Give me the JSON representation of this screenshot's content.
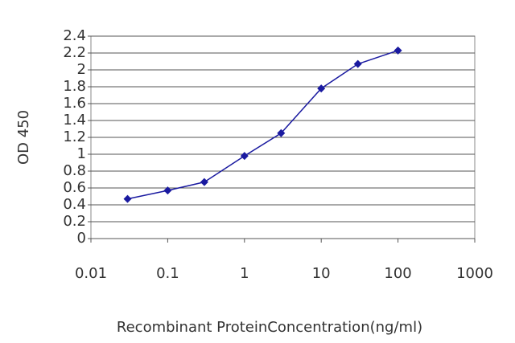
{
  "chart_data": {
    "type": "line",
    "xlabel": "Recombinant ProteinConcentration(ng/ml)",
    "ylabel": "OD 450",
    "x": [
      0.03,
      0.1,
      0.3,
      1,
      3,
      10,
      30,
      100
    ],
    "series": [
      {
        "color": "#1a1aa0",
        "values": [
          0.47,
          0.57,
          0.67,
          0.98,
          1.25,
          1.78,
          2.07,
          2.23
        ]
      }
    ],
    "xscale": "log",
    "xlim": [
      0.01,
      1000
    ],
    "xticks": [
      0.01,
      0.1,
      1,
      10,
      100,
      1000
    ],
    "ylim": [
      0,
      2.4
    ],
    "yticks": [
      0,
      0.2,
      0.4,
      0.6,
      0.8,
      1,
      1.2,
      1.4,
      1.6,
      1.8,
      2,
      2.2,
      2.4
    ],
    "grid": true
  }
}
